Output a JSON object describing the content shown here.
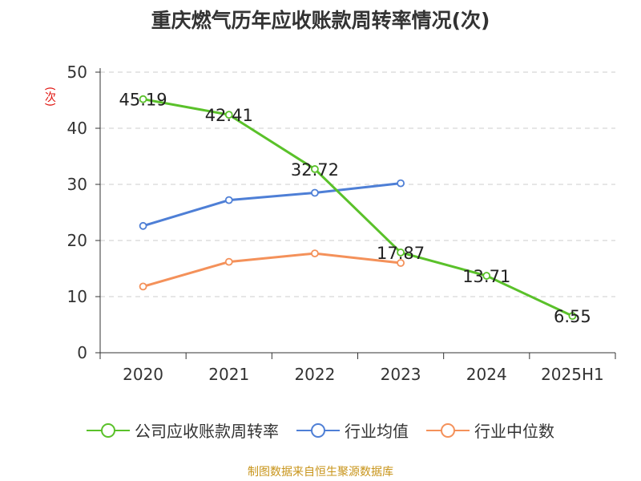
{
  "chart_data": {
    "type": "line",
    "title": "重庆燃气历年应收账款周转率情况(次)",
    "ylabel": "(次)",
    "xlabel": "",
    "categories": [
      "2020",
      "2021",
      "2022",
      "2023",
      "2024",
      "2025H1"
    ],
    "ylim": [
      0,
      50
    ],
    "yticks": [
      0,
      10,
      20,
      30,
      40,
      50
    ],
    "grid": true,
    "legend_position": "bottom",
    "series": [
      {
        "name": "公司应收账款周转率",
        "color": "#5ac12a",
        "values": [
          45.19,
          42.41,
          32.72,
          17.87,
          13.71,
          6.55
        ],
        "labels": [
          "45.19",
          "42.41",
          "32.72",
          "17.87",
          "13.71",
          "6.55"
        ]
      },
      {
        "name": "行业均值",
        "color": "#4e7fd6",
        "values": [
          22.6,
          27.2,
          28.5,
          30.2,
          null,
          null
        ]
      },
      {
        "name": "行业中位数",
        "color": "#f4915a",
        "values": [
          11.8,
          16.2,
          17.7,
          16.0,
          null,
          null
        ]
      }
    ]
  },
  "source_text": "制图数据来自恒生聚源数据库"
}
